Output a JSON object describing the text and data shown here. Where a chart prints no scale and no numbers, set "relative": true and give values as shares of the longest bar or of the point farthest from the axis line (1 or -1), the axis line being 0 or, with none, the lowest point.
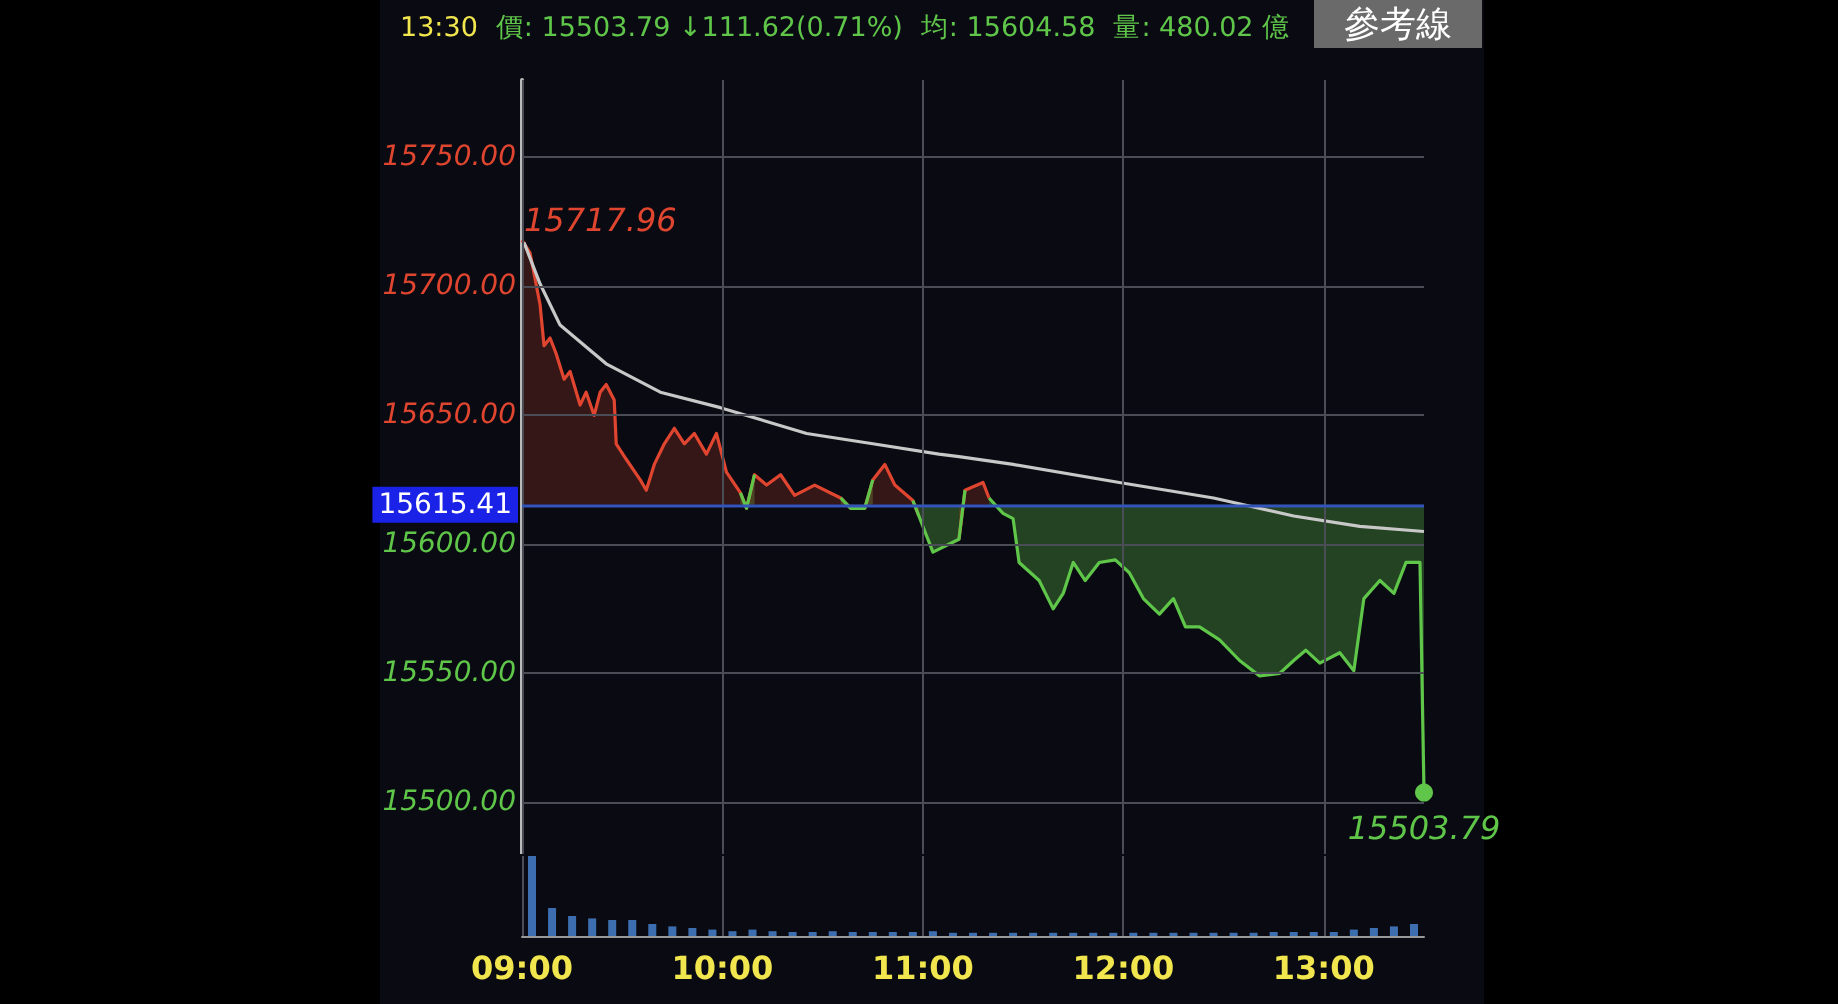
{
  "chart_data": [
    {
      "type": "line",
      "annotations": [
        "13:30",
        "價: 15503.79 ↓111.62(0.71%)",
        "均: 15604.58",
        "量: 480.02 億",
        "參考線",
        {
          "text": "15717.96",
          "x": 9,
          "y": 15717.96
        },
        {
          "text": "15503.79",
          "x": 13.5,
          "y": 15503.79
        }
      ],
      "x": [
        9.0,
        9.04,
        9.09,
        9.11,
        9.14,
        9.17,
        9.21,
        9.24,
        9.29,
        9.32,
        9.36,
        9.39,
        9.42,
        9.46,
        9.47,
        9.52,
        9.59,
        9.62,
        9.66,
        9.71,
        9.76,
        9.81,
        9.86,
        9.92,
        9.97,
        10.02,
        10.09,
        10.12,
        10.16,
        10.22,
        10.29,
        10.36,
        10.46,
        10.59,
        10.64,
        10.71,
        10.75,
        10.81,
        10.86,
        10.95,
        10.98,
        11.05,
        11.18,
        11.21,
        11.3,
        11.33,
        11.4,
        11.45,
        11.48,
        11.58,
        11.65,
        11.7,
        11.75,
        11.81,
        11.88,
        11.96,
        12.03,
        12.1,
        12.18,
        12.25,
        12.31,
        12.38,
        12.48,
        12.58,
        12.68,
        12.78,
        12.85,
        12.91,
        12.98,
        13.08,
        13.15,
        13.2,
        13.28,
        13.35,
        13.41,
        13.48,
        13.5
      ],
      "series": [
        {
          "type": "area",
          "color": "#e0452f",
          "values": [
            15717.96,
            15713,
            15693,
            15677,
            15680,
            15674,
            15664,
            15667,
            15654,
            15659,
            15650,
            15659,
            15662,
            15656,
            15639,
            15633,
            15625,
            15621,
            15631,
            15639,
            15645,
            15639,
            15643,
            15635,
            15643,
            15628,
            15620,
            15614,
            15627,
            15623,
            15627,
            15619,
            15623,
            15618,
            15614,
            15614,
            15625,
            15631,
            15623,
            15617,
            15611,
            null,
            15602,
            15621,
            15624,
            15618,
            null,
            null,
            null,
            null,
            null,
            null,
            null,
            null,
            null,
            null,
            null,
            null,
            null,
            null,
            null,
            null,
            null,
            null,
            null,
            null,
            null,
            null,
            null,
            null,
            null,
            null,
            null,
            null,
            null,
            null,
            null
          ]
        },
        {
          "type": "line",
          "color": "#5fc64a",
          "lower": [
            null,
            null,
            null,
            null,
            null,
            null,
            null,
            null,
            null,
            null,
            null,
            null,
            null,
            null,
            null,
            null,
            null,
            null,
            null,
            null,
            null,
            null,
            null,
            null,
            null,
            null,
            15620,
            15614,
            15627,
            null,
            null,
            null,
            null,
            15618,
            15614,
            15614,
            15625,
            null,
            null,
            15617,
            15611,
            15597,
            15602,
            15621,
            null,
            15618,
            15612,
            15610,
            15593,
            15586,
            15575,
            15581,
            15593,
            15586,
            15593,
            15594,
            15589,
            15579,
            15573,
            15579,
            15568,
            15568,
            15563,
            15555,
            15549,
            15550,
            15555,
            15559,
            15554,
            15558,
            15551,
            15579,
            15586,
            15581,
            15593,
            15593,
            15503.79
          ],
          "upper": [
            null,
            null,
            null,
            null,
            null,
            null,
            null,
            null,
            null,
            null,
            null,
            null,
            null,
            null,
            null,
            null,
            null,
            null,
            null,
            null,
            null,
            null,
            null,
            null,
            null,
            null,
            15615.41,
            15615.41,
            15615.41,
            null,
            null,
            null,
            null,
            15615.41,
            15615.41,
            15615.41,
            15615.41,
            null,
            null,
            15615.41,
            15615.41,
            15615.41,
            15615.41,
            15615.41,
            null,
            15615.41,
            15615.41,
            15615.41,
            15615.41,
            15615.41,
            15615.41,
            15615.41,
            15615.41,
            15615.41,
            15615.41,
            15615.41,
            15615.41,
            15615.41,
            15615.41,
            15615.41,
            15615.41,
            15615.41,
            15615.41,
            15615.41,
            15615.41,
            15615.41,
            15615.41,
            15615.41,
            15615.41,
            15615.41,
            15615.41,
            15615.41,
            15615.41,
            15615.41,
            15615.41,
            15615.41,
            15615.41
          ],
          "values": [
            null,
            null,
            null,
            null,
            null,
            null,
            null,
            null,
            null,
            null,
            null,
            null,
            null,
            null,
            null,
            null,
            null,
            null,
            null,
            null,
            null,
            null,
            null,
            null,
            null,
            null,
            15620,
            15614,
            15627,
            null,
            null,
            null,
            null,
            15618,
            15614,
            15614,
            15625,
            null,
            null,
            15617,
            15611,
            15597,
            15602,
            15621,
            null,
            15618,
            15612,
            15610,
            15593,
            15586,
            15575,
            15581,
            15593,
            15586,
            15593,
            15594,
            15589,
            15579,
            15573,
            15579,
            15568,
            15568,
            15563,
            15555,
            15549,
            15550,
            15555,
            15559,
            15554,
            15558,
            15551,
            15579,
            15586,
            15581,
            15593,
            15593,
            15503.79
          ]
        },
        {
          "type": "line",
          "color": "#c8c8c8",
          "x": [
            9.01,
            9.09,
            9.19,
            9.42,
            9.69,
            9.99,
            10.42,
            10.75,
            11.08,
            11.18,
            11.45,
            11.98,
            12.45,
            12.85,
            13.18,
            13.5
          ],
          "values": [
            15717,
            15701,
            15685,
            15670,
            15659,
            15653,
            15643,
            15639,
            15635,
            15634,
            15631,
            15624,
            15618,
            15611,
            15607,
            15605
          ]
        }
      ],
      "ref_lines": [
        {
          "axis": "y",
          "value": 15615.41,
          "label": "15615.41",
          "color": "#3355bb"
        }
      ],
      "xlim": [
        9,
        13.5
      ],
      "xticks": [
        9,
        10,
        11,
        12,
        13
      ],
      "ylim": [
        15480,
        15780
      ],
      "yticks": [
        {
          "value": 15500,
          "label": "15500.00"
        },
        {
          "value": 15550,
          "label": "15550.00"
        },
        {
          "value": 15600,
          "label": "15600.00"
        },
        {
          "value": 15650,
          "label": "15650.00"
        },
        {
          "value": 15700,
          "label": "15700.00"
        },
        {
          "value": 15750,
          "label": "15750.00"
        }
      ],
      "grid": true,
      "marker": "none",
      "tick_labels": "y"
    },
    {
      "type": "bar",
      "relative": true,
      "color": "#3d6fb0",
      "x": [
        9.05,
        9.15,
        9.25,
        9.35,
        9.45,
        9.55,
        9.65,
        9.75,
        9.85,
        9.95,
        10.05,
        10.15,
        10.25,
        10.35,
        10.45,
        10.55,
        10.65,
        10.75,
        10.85,
        10.95,
        11.05,
        11.15,
        11.25,
        11.35,
        11.45,
        11.55,
        11.65,
        11.75,
        11.85,
        11.95,
        12.05,
        12.15,
        12.25,
        12.35,
        12.45,
        12.55,
        12.65,
        12.75,
        12.85,
        12.95,
        13.05,
        13.15,
        13.25,
        13.35,
        13.45
      ],
      "values": [
        1,
        0.35,
        0.25,
        0.22,
        0.2,
        0.2,
        0.15,
        0.12,
        0.1,
        0.08,
        0.06,
        0.08,
        0.06,
        0.05,
        0.05,
        0.06,
        0.05,
        0.05,
        0.05,
        0.05,
        0.06,
        0.04,
        0.04,
        0.04,
        0.04,
        0.04,
        0.04,
        0.04,
        0.04,
        0.04,
        0.04,
        0.04,
        0.04,
        0.04,
        0.04,
        0.04,
        0.04,
        0.05,
        0.05,
        0.05,
        0.05,
        0.08,
        0.1,
        0.12,
        0.15
      ],
      "xlim": [
        9,
        13.5
      ],
      "xticks": [
        {
          "value": 9,
          "label": "09:00"
        },
        {
          "value": 10,
          "label": "10:00"
        },
        {
          "value": 11,
          "label": "11:00"
        },
        {
          "value": 12,
          "label": "12:00"
        },
        {
          "value": 13,
          "label": "13:00"
        }
      ],
      "grid": "x",
      "tick_labels": "x"
    }
  ]
}
